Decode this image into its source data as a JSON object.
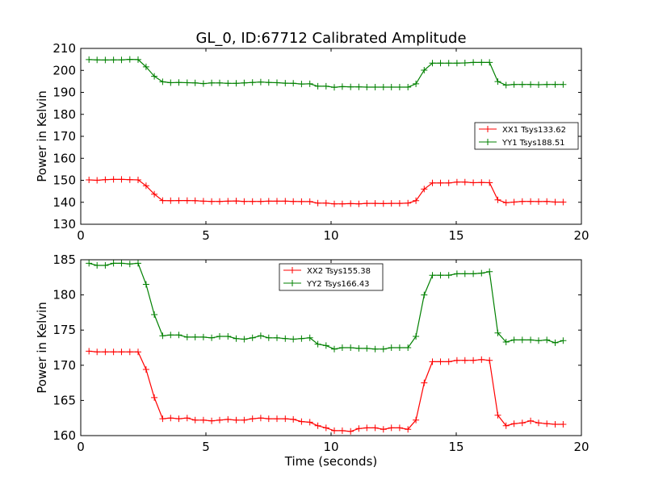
{
  "chart_data": [
    {
      "type": "line",
      "title": "GL_0, ID:67712 Calibrated Amplitude",
      "xlabel": "",
      "ylabel": "Power in Kelvin",
      "xlim": [
        0,
        20
      ],
      "ylim": [
        130,
        210
      ],
      "xticks": [
        "0",
        "5",
        "10",
        "15",
        "20"
      ],
      "yticks": [
        "130",
        "140",
        "150",
        "160",
        "170",
        "180",
        "190",
        "200",
        "210"
      ],
      "legend_position": "center-right",
      "x": [
        0.33,
        0.65,
        0.98,
        1.31,
        1.63,
        1.96,
        2.29,
        2.61,
        2.94,
        3.27,
        3.59,
        3.92,
        4.25,
        4.57,
        4.9,
        5.23,
        5.55,
        5.88,
        6.21,
        6.53,
        6.86,
        7.19,
        7.51,
        7.84,
        8.17,
        8.49,
        8.82,
        9.15,
        9.47,
        9.8,
        10.13,
        10.45,
        10.78,
        11.11,
        11.43,
        11.76,
        12.09,
        12.41,
        12.74,
        13.07,
        13.39,
        13.72,
        14.05,
        14.37,
        14.7,
        15.03,
        15.35,
        15.68,
        16.01,
        16.33,
        16.66,
        16.99,
        17.31,
        17.64,
        17.97,
        18.29,
        18.62,
        18.95,
        19.27
      ],
      "series": [
        {
          "name": "XX1 Tsys133.62",
          "color": "#ff0000",
          "values": [
            150.2,
            150.0,
            150.3,
            150.4,
            150.4,
            150.3,
            150.2,
            147.5,
            143.7,
            140.8,
            140.7,
            140.8,
            140.8,
            140.7,
            140.5,
            140.4,
            140.4,
            140.5,
            140.6,
            140.4,
            140.4,
            140.4,
            140.5,
            140.5,
            140.5,
            140.4,
            140.3,
            140.3,
            139.6,
            139.6,
            139.3,
            139.3,
            139.4,
            139.3,
            139.5,
            139.5,
            139.4,
            139.5,
            139.5,
            139.6,
            140.7,
            146.0,
            148.8,
            148.8,
            148.8,
            149.2,
            149.2,
            148.9,
            149.0,
            148.9,
            141.1,
            139.8,
            140.1,
            140.4,
            140.4,
            140.3,
            140.4,
            140.1,
            140.1
          ]
        },
        {
          "name": "YY1 Tsys188.51",
          "color": "#008000",
          "values": [
            204.9,
            204.8,
            204.7,
            204.8,
            204.8,
            205.0,
            204.9,
            201.6,
            197.3,
            194.8,
            194.4,
            194.5,
            194.4,
            194.3,
            194.0,
            194.3,
            194.3,
            194.1,
            194.1,
            194.3,
            194.5,
            194.7,
            194.5,
            194.4,
            194.2,
            194.1,
            193.8,
            193.9,
            192.8,
            192.8,
            192.3,
            192.6,
            192.5,
            192.5,
            192.4,
            192.4,
            192.4,
            192.4,
            192.4,
            192.4,
            193.9,
            200.1,
            203.3,
            203.3,
            203.3,
            203.3,
            203.4,
            203.6,
            203.6,
            203.6,
            194.9,
            193.3,
            193.6,
            193.6,
            193.6,
            193.5,
            193.6,
            193.6,
            193.6
          ]
        }
      ]
    },
    {
      "type": "line",
      "title": "",
      "xlabel": "Time (seconds)",
      "ylabel": "Power in Kelvin",
      "xlim": [
        0,
        20
      ],
      "ylim": [
        160,
        185
      ],
      "xticks": [
        "0",
        "5",
        "10",
        "15",
        "20"
      ],
      "yticks": [
        "160",
        "165",
        "170",
        "175",
        "180",
        "185"
      ],
      "legend_position": "upper-center",
      "x": [
        0.33,
        0.65,
        0.98,
        1.31,
        1.63,
        1.96,
        2.29,
        2.61,
        2.94,
        3.27,
        3.59,
        3.92,
        4.25,
        4.57,
        4.9,
        5.23,
        5.55,
        5.88,
        6.21,
        6.53,
        6.86,
        7.19,
        7.51,
        7.84,
        8.17,
        8.49,
        8.82,
        9.15,
        9.47,
        9.8,
        10.13,
        10.45,
        10.78,
        11.11,
        11.43,
        11.76,
        12.09,
        12.41,
        12.74,
        13.07,
        13.39,
        13.72,
        14.05,
        14.37,
        14.7,
        15.03,
        15.35,
        15.68,
        16.01,
        16.33,
        16.66,
        16.99,
        17.31,
        17.64,
        17.97,
        18.29,
        18.62,
        18.95,
        19.27
      ],
      "series": [
        {
          "name": "XX2 Tsys155.38",
          "color": "#ff0000",
          "values": [
            172.0,
            171.9,
            171.9,
            171.9,
            171.9,
            171.9,
            171.9,
            169.4,
            165.4,
            162.4,
            162.5,
            162.4,
            162.5,
            162.2,
            162.2,
            162.1,
            162.2,
            162.3,
            162.2,
            162.2,
            162.4,
            162.5,
            162.4,
            162.4,
            162.4,
            162.3,
            162.0,
            161.9,
            161.4,
            161.1,
            160.7,
            160.7,
            160.6,
            161.0,
            161.1,
            161.1,
            160.9,
            161.1,
            161.1,
            160.9,
            162.2,
            167.5,
            170.5,
            170.5,
            170.5,
            170.7,
            170.7,
            170.7,
            170.8,
            170.7,
            162.9,
            161.4,
            161.7,
            161.8,
            162.1,
            161.8,
            161.7,
            161.6,
            161.6
          ]
        },
        {
          "name": "YY2 Tsys166.43",
          "color": "#008000",
          "values": [
            184.5,
            184.2,
            184.2,
            184.5,
            184.5,
            184.4,
            184.5,
            181.5,
            177.2,
            174.2,
            174.3,
            174.3,
            174.0,
            174.0,
            174.0,
            173.9,
            174.1,
            174.1,
            173.8,
            173.7,
            173.9,
            174.2,
            173.9,
            173.9,
            173.8,
            173.7,
            173.8,
            173.9,
            173.0,
            172.8,
            172.3,
            172.5,
            172.5,
            172.4,
            172.4,
            172.3,
            172.3,
            172.5,
            172.5,
            172.5,
            174.1,
            180.0,
            182.8,
            182.8,
            182.8,
            183.0,
            183.0,
            183.0,
            183.1,
            183.3,
            174.6,
            173.3,
            173.6,
            173.6,
            173.6,
            173.5,
            173.6,
            173.2,
            173.5
          ]
        }
      ]
    }
  ]
}
